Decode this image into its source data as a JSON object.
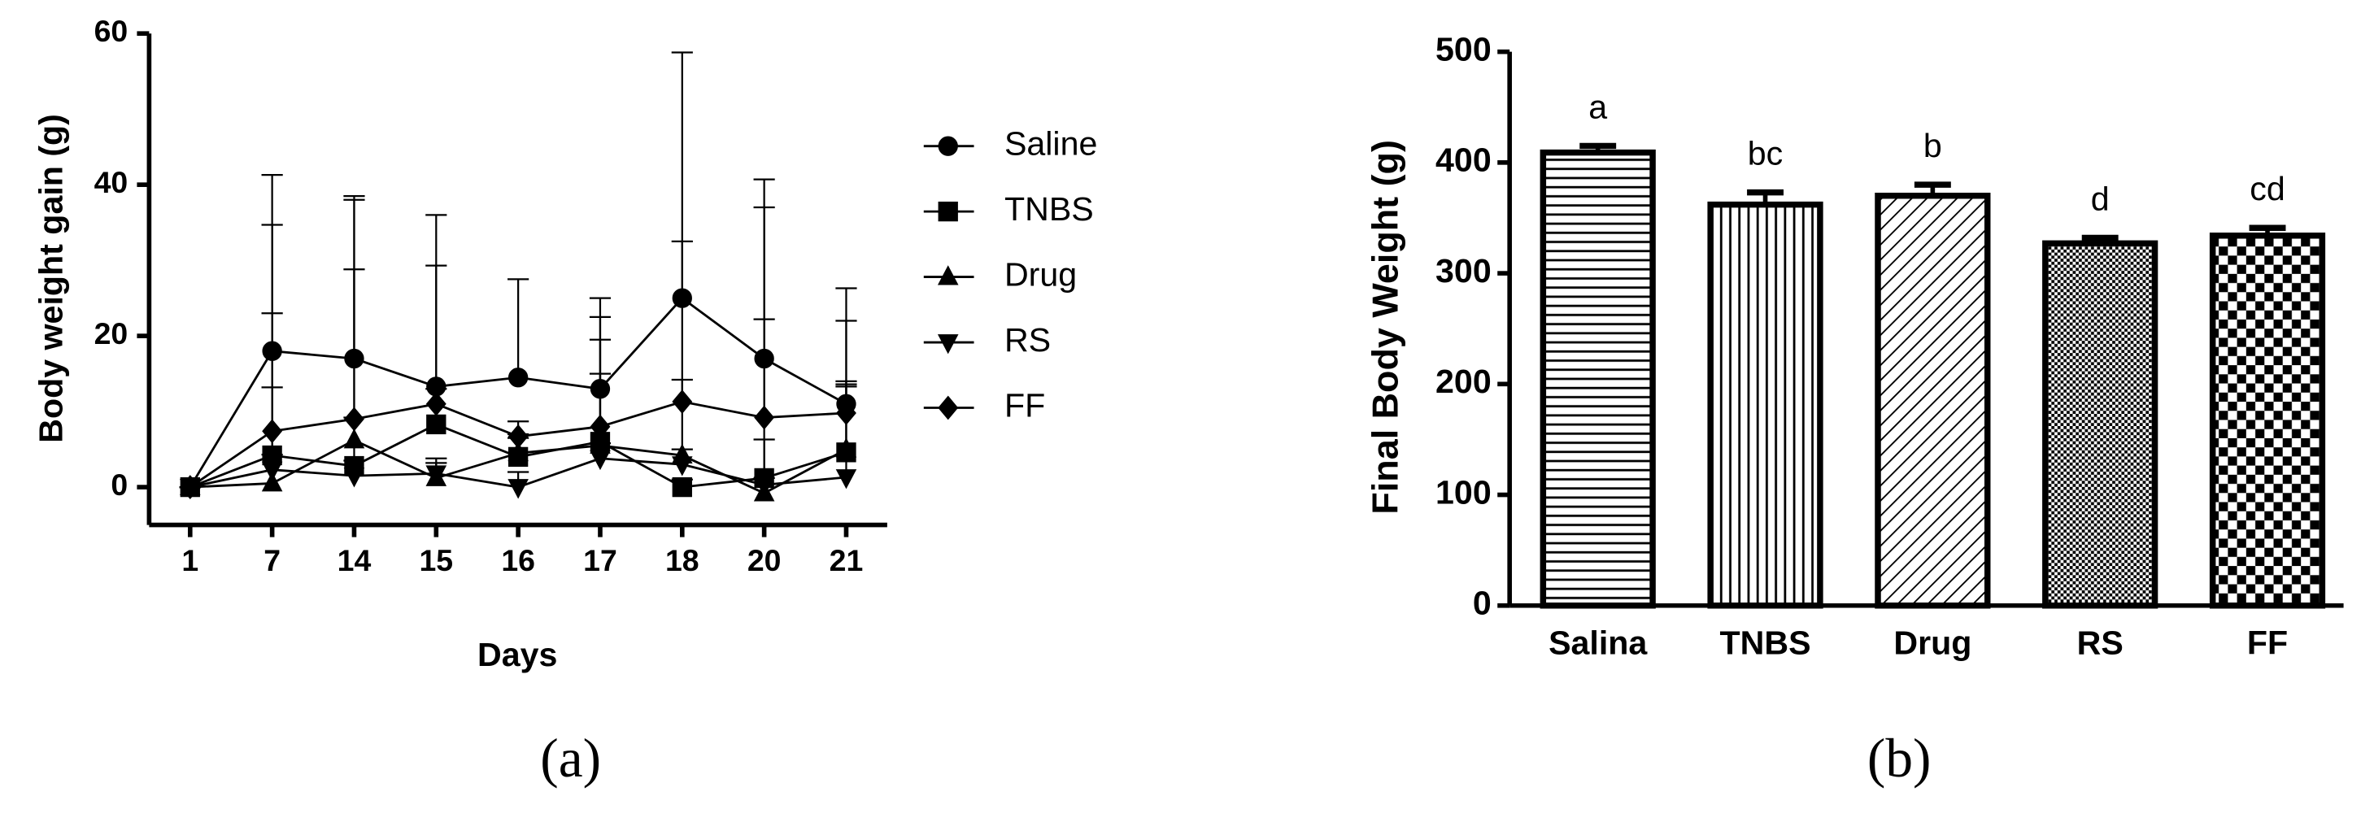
{
  "chart_data": [
    {
      "type": "line",
      "panel_label": "(a)",
      "x_label": "Days",
      "y_label": "Body weight gain (g)",
      "categories": [
        "1",
        "7",
        "14",
        "15",
        "16",
        "17",
        "18",
        "20",
        "21"
      ],
      "ylim": [
        -5,
        60
      ],
      "yticks": [
        0,
        20,
        40,
        60
      ],
      "series": [
        {
          "name": "Saline",
          "color": "#000000",
          "marker": "circle",
          "values": [
            0,
            18,
            17,
            13.3,
            14.5,
            13,
            25,
            17,
            11
          ],
          "errors": [
            0,
            23.3,
            21.5,
            22.7,
            13,
            12,
            32.5,
            23.7,
            15.3
          ]
        },
        {
          "name": "TNBS",
          "color": "#000000",
          "marker": "square",
          "values": [
            0,
            4.2,
            2.8,
            8.3,
            4,
            6,
            0,
            1.2,
            4.6
          ],
          "errors": [
            0,
            9,
            26,
            21,
            3,
            9,
            1,
            21,
            9
          ]
        },
        {
          "name": "Drug",
          "color": "#000000",
          "marker": "triangle",
          "values": [
            0,
            0.5,
            6.2,
            1.2,
            4.5,
            5.5,
            4.2,
            -0.8,
            5
          ],
          "errors": [
            0,
            22.5,
            3,
            2,
            2,
            14,
            10,
            2,
            9
          ]
        },
        {
          "name": "RS",
          "color": "#000000",
          "marker": "triangle-down",
          "values": [
            0,
            2.3,
            1.5,
            1.8,
            0,
            3.8,
            3,
            0.3,
            1.3
          ],
          "errors": [
            0,
            2,
            2,
            2,
            2,
            2,
            2,
            6,
            12
          ]
        },
        {
          "name": "FF",
          "color": "#000000",
          "marker": "diamond",
          "values": [
            0,
            7.4,
            9,
            11,
            6.7,
            8,
            11.3,
            9.2,
            9.8
          ],
          "errors": [
            0,
            27.3,
            29,
            2,
            2,
            14.5,
            21.2,
            27.8,
            12.2
          ]
        }
      ]
    },
    {
      "type": "bar",
      "panel_label": "(b)",
      "y_label": "Final Body Weight (g)",
      "categories": [
        "Salina",
        "TNBS",
        "Drug",
        "RS",
        "FF"
      ],
      "values": [
        409,
        362,
        370,
        327,
        334
      ],
      "errors": [
        6,
        11,
        10,
        5,
        7
      ],
      "annotations": [
        "a",
        "bc",
        "b",
        "d",
        "cd"
      ],
      "patterns": [
        "hlines",
        "vlines",
        "diagonal",
        "fine-check",
        "check"
      ],
      "color": "#000000",
      "ylim": [
        0,
        500
      ],
      "yticks": [
        0,
        100,
        200,
        300,
        400,
        500
      ]
    }
  ]
}
